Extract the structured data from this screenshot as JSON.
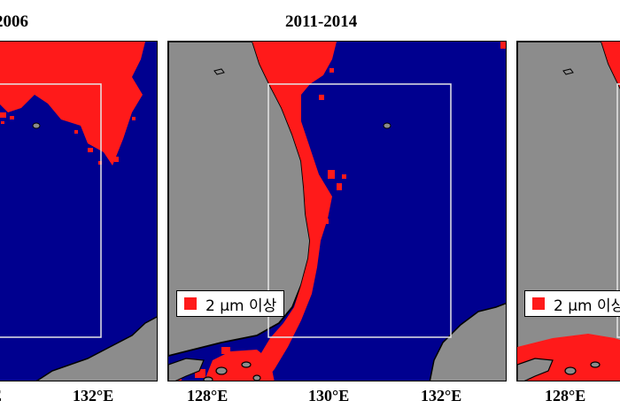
{
  "panels": [
    {
      "title": "2006"
    },
    {
      "title": "2011-2014"
    },
    {
      "title": ""
    }
  ],
  "legend": {
    "label": "2 μm 이상",
    "color": "#ff1a1a"
  },
  "x_ticks": [
    "128°E",
    "130°E",
    "132°E"
  ],
  "colors": {
    "sea": "#00008f",
    "land": "#8c8c8c",
    "coast": "#000000",
    "box": "#e6e6e6",
    "highlight": "#ff1a1a"
  }
}
